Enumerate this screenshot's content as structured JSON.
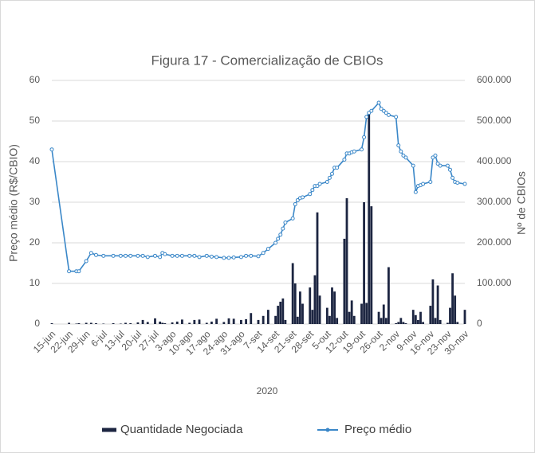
{
  "chart_data": {
    "type": "combo",
    "title": "Figura 17 - Comercialização de CBIOs",
    "xlabel": "2020",
    "ylabel": "Preço médio (R$/CBIO)",
    "y2label": "Nº de CBIOs",
    "x": [
      "15-jun",
      "22-jun",
      "25-jun",
      "26-jun",
      "29-jun",
      "1-jul",
      "3-jul",
      "6-jul",
      "10-jul",
      "13-jul",
      "15-jul",
      "17-jul",
      "20-jul",
      "22-jul",
      "24-jul",
      "27-jul",
      "29-jul",
      "30-jul",
      "31-jul",
      "3-ago",
      "5-ago",
      "7-ago",
      "10-ago",
      "12-ago",
      "14-ago",
      "17-ago",
      "19-ago",
      "21-ago",
      "24-ago",
      "26-ago",
      "28-ago",
      "31-ago",
      "2-set",
      "4-set",
      "7-set",
      "9-set",
      "11-set",
      "14-set",
      "15-set",
      "16-set",
      "17-set",
      "18-set",
      "21-set",
      "22-set",
      "23-set",
      "24-set",
      "25-set",
      "28-set",
      "29-set",
      "30-set",
      "1-out",
      "2-out",
      "5-out",
      "6-out",
      "7-out",
      "8-out",
      "9-out",
      "12-out",
      "13-out",
      "14-out",
      "15-out",
      "16-out",
      "19-out",
      "20-out",
      "21-out",
      "22-out",
      "23-out",
      "26-out",
      "27-out",
      "28-out",
      "29-out",
      "30-out",
      "2-nov",
      "3-nov",
      "4-nov",
      "5-nov",
      "6-nov",
      "9-nov",
      "10-nov",
      "11-nov",
      "12-nov",
      "13-nov",
      "16-nov",
      "17-nov",
      "18-nov",
      "19-nov",
      "20-nov",
      "23-nov",
      "24-nov",
      "25-nov",
      "26-nov",
      "27-nov",
      "30-nov"
    ],
    "xticks": [
      "15-jun",
      "22-jun",
      "29-jun",
      "6-jul",
      "13-jul",
      "20-jul",
      "27-jul",
      "3-ago",
      "10-ago",
      "17-ago",
      "24-ago",
      "31-ago",
      "7-set",
      "14-set",
      "21-set",
      "28-set",
      "5-out",
      "12-out",
      "19-out",
      "26-out",
      "2-nov",
      "9-nov",
      "16-nov",
      "23-nov",
      "30-nov"
    ],
    "xlim": [
      "15-jun",
      "30-nov"
    ],
    "series": [
      {
        "name": "Quantidade Negociada",
        "type": "bar",
        "axis": "y2",
        "color": "#1c2541",
        "values": [
          2000,
          3000,
          1000,
          2000,
          3000,
          3000,
          2000,
          1000,
          2000,
          1000,
          3000,
          2000,
          4000,
          10000,
          5000,
          14000,
          6000,
          3000,
          2000,
          4000,
          6000,
          11000,
          3000,
          10000,
          11000,
          3000,
          6000,
          13000,
          5000,
          14000,
          13000,
          10000,
          12000,
          27000,
          10000,
          20000,
          35000,
          20000,
          45000,
          55000,
          63000,
          10000,
          150000,
          100000,
          18000,
          80000,
          50000,
          90000,
          35000,
          120000,
          275000,
          70000,
          40000,
          20000,
          90000,
          80000,
          15000,
          210000,
          310000,
          30000,
          58000,
          20000,
          50000,
          300000,
          52000,
          520000,
          290000,
          30000,
          15000,
          48000,
          15000,
          140000,
          2000,
          5000,
          15000,
          5000,
          2000,
          35000,
          22000,
          10000,
          30000,
          5000,
          45000,
          110000,
          15000,
          95000,
          10000,
          3000,
          40000,
          125000,
          70000,
          5000,
          35000
        ]
      },
      {
        "name": "Preço médio",
        "type": "line",
        "color": "#3a87c8",
        "values": [
          43,
          13,
          13,
          13,
          15.5,
          17.5,
          17,
          16.8,
          16.8,
          16.8,
          16.8,
          16.8,
          16.8,
          16.8,
          16.5,
          16.8,
          16.5,
          17.5,
          17.2,
          16.8,
          16.8,
          16.8,
          16.8,
          16.8,
          16.5,
          16.8,
          16.6,
          16.5,
          16.3,
          16.3,
          16.4,
          16.5,
          16.8,
          16.8,
          16.7,
          17.5,
          18.5,
          20,
          21,
          22,
          23.5,
          25,
          26,
          29.5,
          30.5,
          31,
          31.2,
          32,
          33,
          34,
          34,
          34.5,
          35,
          36,
          37,
          38.5,
          38.5,
          40.5,
          42,
          42,
          42.3,
          42.5,
          43,
          46,
          51,
          52,
          52.5,
          54.5,
          53,
          52.5,
          52,
          51.5,
          51,
          44,
          42.5,
          41.5,
          41,
          39,
          32.5,
          34,
          34.2,
          34.5,
          35,
          41,
          41.5,
          39.5,
          39,
          39,
          38,
          36,
          35,
          34.8,
          34.5
        ]
      }
    ],
    "ylim": [
      0,
      60
    ],
    "yticks": [
      0,
      10,
      20,
      30,
      40,
      50,
      60
    ],
    "y2lim": [
      0,
      600000
    ],
    "y2ticks": [
      0,
      {
        "value": 100000,
        "label": "100.000"
      },
      {
        "value": 200000,
        "label": "200.000"
      },
      {
        "value": 300000,
        "label": "300.000"
      },
      {
        "value": 400000,
        "label": "400.000"
      },
      {
        "value": 500000,
        "label": "500.000"
      },
      {
        "value": 600000,
        "label": "600.000"
      }
    ],
    "grid": true,
    "legend": "bottom"
  }
}
